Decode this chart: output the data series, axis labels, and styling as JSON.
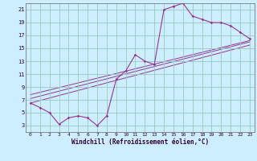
{
  "xlabel": "Windchill (Refroidissement éolien,°C)",
  "bg_color": "#cceeff",
  "line_color": "#993399",
  "grid_color": "#99ccbb",
  "xlim": [
    -0.5,
    23.5
  ],
  "ylim": [
    2,
    22
  ],
  "xticks": [
    0,
    1,
    2,
    3,
    4,
    5,
    6,
    7,
    8,
    9,
    10,
    11,
    12,
    13,
    14,
    15,
    16,
    17,
    18,
    19,
    20,
    21,
    22,
    23
  ],
  "yticks": [
    3,
    5,
    7,
    9,
    11,
    13,
    15,
    17,
    19,
    21
  ],
  "series1_x": [
    0,
    1,
    2,
    3,
    4,
    5,
    6,
    7,
    8,
    9,
    10,
    11,
    12,
    13,
    14,
    15,
    16,
    17,
    18,
    19,
    20,
    21,
    22,
    23
  ],
  "series1_y": [
    6.5,
    5.8,
    5.0,
    3.2,
    4.2,
    4.5,
    4.2,
    3.0,
    4.5,
    10.2,
    11.5,
    14.0,
    13.0,
    12.5,
    21.0,
    21.5,
    22.0,
    20.0,
    19.5,
    19.0,
    19.0,
    18.5,
    17.5,
    16.5
  ],
  "line1_x": [
    0,
    23
  ],
  "line1_y": [
    6.5,
    15.5
  ],
  "line2_x": [
    0,
    23
  ],
  "line2_y": [
    7.2,
    16.0
  ],
  "line3_x": [
    0,
    23
  ],
  "line3_y": [
    7.8,
    16.2
  ]
}
